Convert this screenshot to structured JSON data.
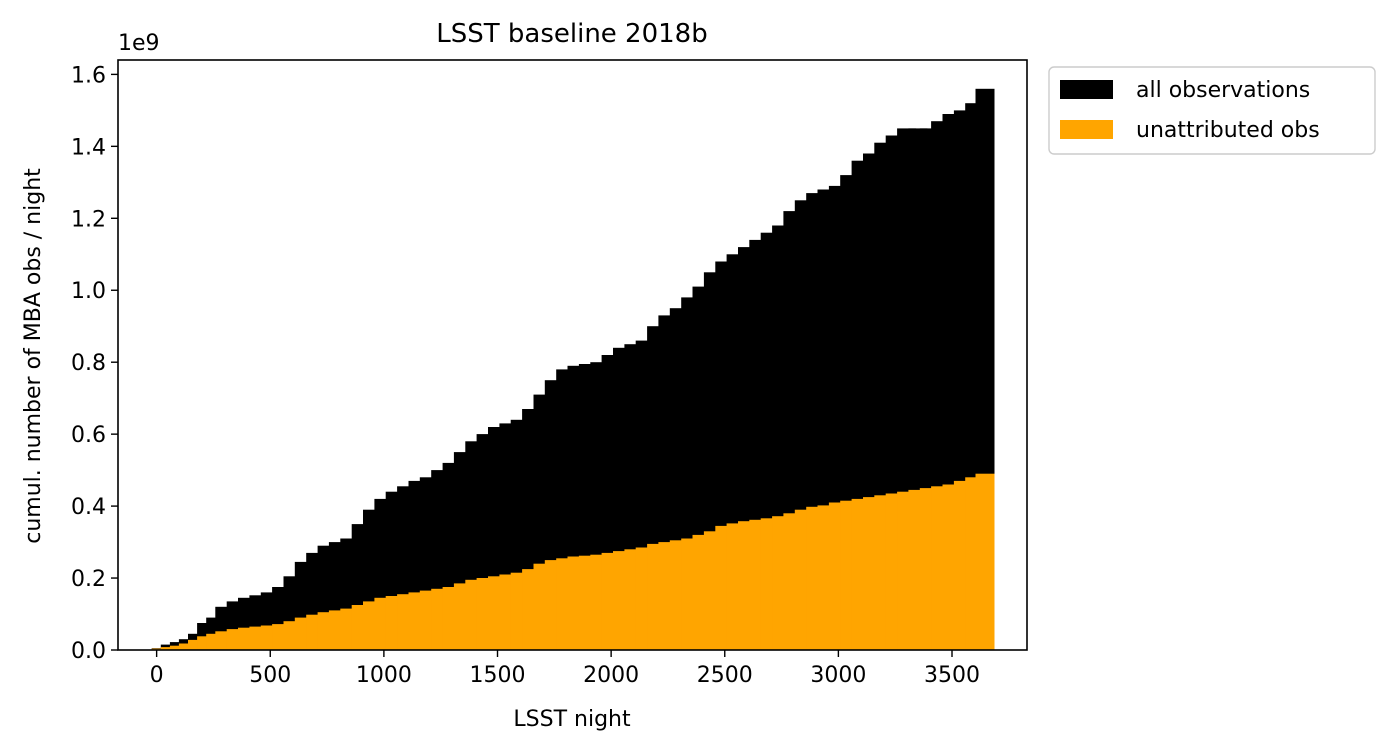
{
  "chart_data": {
    "type": "bar",
    "title": "LSST baseline 2018b",
    "xlabel": "LSST night",
    "ylabel": "cumul. number of MBA obs / night",
    "y_offset_label": "1e9",
    "xlim": [
      -170,
      3830
    ],
    "ylim": [
      0,
      1.64
    ],
    "xticks": [
      0,
      500,
      1000,
      1500,
      2000,
      2500,
      3000,
      3500
    ],
    "xtick_labels": [
      "0",
      "500",
      "1000",
      "1500",
      "2000",
      "2500",
      "3000",
      "3500"
    ],
    "yticks": [
      0.0,
      0.2,
      0.4,
      0.6,
      0.8,
      1.0,
      1.2,
      1.4,
      1.6
    ],
    "ytick_labels": [
      "0.0",
      "0.2",
      "0.4",
      "0.6",
      "0.8",
      "1.0",
      "1.2",
      "1.4",
      "1.6"
    ],
    "grid": false,
    "legend_position": "outside-top-right",
    "series": [
      {
        "name": "all observations",
        "color": "#000000",
        "x": [
          20,
          60,
          100,
          140,
          180,
          220,
          260,
          300,
          350,
          400,
          450,
          500,
          550,
          600,
          650,
          700,
          750,
          800,
          850,
          900,
          950,
          1000,
          1050,
          1100,
          1150,
          1200,
          1250,
          1300,
          1350,
          1400,
          1450,
          1500,
          1550,
          1600,
          1650,
          1700,
          1750,
          1800,
          1850,
          1900,
          1950,
          2000,
          2050,
          2100,
          2150,
          2200,
          2250,
          2300,
          2350,
          2400,
          2450,
          2500,
          2550,
          2600,
          2650,
          2700,
          2750,
          2800,
          2850,
          2900,
          2950,
          3000,
          3050,
          3100,
          3150,
          3200,
          3250,
          3300,
          3350,
          3400,
          3450,
          3500,
          3550,
          3600,
          3645
        ],
        "values": [
          0.005,
          0.015,
          0.022,
          0.03,
          0.045,
          0.075,
          0.09,
          0.12,
          0.135,
          0.145,
          0.152,
          0.16,
          0.175,
          0.205,
          0.245,
          0.27,
          0.29,
          0.3,
          0.31,
          0.35,
          0.39,
          0.42,
          0.44,
          0.455,
          0.47,
          0.48,
          0.5,
          0.52,
          0.55,
          0.58,
          0.6,
          0.62,
          0.63,
          0.64,
          0.67,
          0.71,
          0.75,
          0.78,
          0.79,
          0.795,
          0.8,
          0.82,
          0.84,
          0.85,
          0.86,
          0.9,
          0.93,
          0.95,
          0.98,
          1.01,
          1.05,
          1.08,
          1.1,
          1.12,
          1.14,
          1.16,
          1.18,
          1.22,
          1.25,
          1.27,
          1.28,
          1.29,
          1.32,
          1.36,
          1.38,
          1.41,
          1.43,
          1.45,
          1.45,
          1.45,
          1.47,
          1.49,
          1.5,
          1.52,
          1.56
        ]
      },
      {
        "name": "unattributed obs",
        "color": "#ffa500",
        "x": [
          20,
          60,
          100,
          140,
          180,
          220,
          260,
          300,
          350,
          400,
          450,
          500,
          550,
          600,
          650,
          700,
          750,
          800,
          850,
          900,
          950,
          1000,
          1050,
          1100,
          1150,
          1200,
          1250,
          1300,
          1350,
          1400,
          1450,
          1500,
          1550,
          1600,
          1650,
          1700,
          1750,
          1800,
          1850,
          1900,
          1950,
          2000,
          2050,
          2100,
          2150,
          2200,
          2250,
          2300,
          2350,
          2400,
          2450,
          2500,
          2550,
          2600,
          2650,
          2700,
          2750,
          2800,
          2850,
          2900,
          2950,
          3000,
          3050,
          3100,
          3150,
          3200,
          3250,
          3300,
          3350,
          3400,
          3450,
          3500,
          3550,
          3600,
          3645
        ],
        "values": [
          0.004,
          0.008,
          0.012,
          0.018,
          0.028,
          0.038,
          0.045,
          0.052,
          0.058,
          0.062,
          0.065,
          0.068,
          0.072,
          0.08,
          0.09,
          0.098,
          0.105,
          0.11,
          0.115,
          0.125,
          0.135,
          0.145,
          0.15,
          0.155,
          0.16,
          0.165,
          0.17,
          0.175,
          0.185,
          0.195,
          0.2,
          0.205,
          0.21,
          0.215,
          0.225,
          0.24,
          0.25,
          0.255,
          0.26,
          0.262,
          0.265,
          0.27,
          0.275,
          0.28,
          0.285,
          0.295,
          0.3,
          0.305,
          0.31,
          0.32,
          0.33,
          0.345,
          0.352,
          0.358,
          0.362,
          0.366,
          0.372,
          0.38,
          0.39,
          0.398,
          0.402,
          0.41,
          0.415,
          0.42,
          0.425,
          0.43,
          0.435,
          0.44,
          0.445,
          0.45,
          0.455,
          0.46,
          0.47,
          0.48,
          0.49
        ]
      }
    ]
  }
}
